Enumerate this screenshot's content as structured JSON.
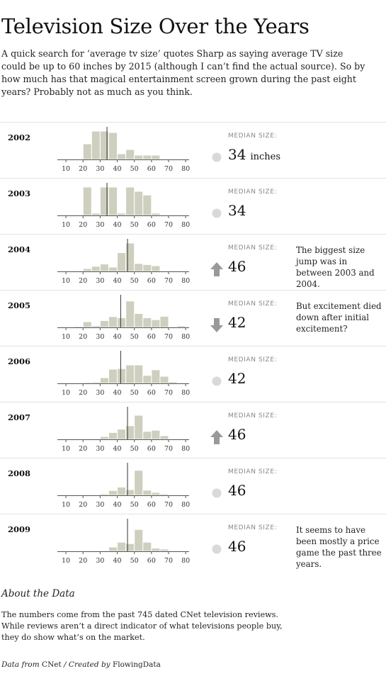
{
  "title": "Television Size Over the Years",
  "intro": "A quick search for ‘average tv size’ quotes Sharp as saying average TV size could be up to 60 inches by 2015 (although I can’t find the actual source). So by how much has that magical entertainment screen grown during the past eight years? Probably not as much as you think.",
  "median_label": "MEDIAN SIZE:",
  "unit": "inches",
  "colors": {
    "bar": "#cfcfbf",
    "bar_stroke": "#ffffff",
    "median_line": "#333333",
    "axis": "#555555",
    "indicator": "#999999",
    "neutral": "#d9d9d9"
  },
  "chart_data": {
    "type": "bar",
    "x_ticks": [
      10,
      20,
      30,
      40,
      50,
      60,
      70,
      80
    ],
    "xlim": [
      5,
      82
    ],
    "bin_width": 5,
    "bins": [
      10,
      15,
      20,
      25,
      30,
      35,
      40,
      45,
      50,
      55,
      60,
      65,
      70,
      75,
      80
    ],
    "series": [
      {
        "year": "2002",
        "median": 34,
        "trend": "same",
        "values": [
          0,
          0,
          0.55,
          1.0,
          1.0,
          0.95,
          0.2,
          0.35,
          0.15,
          0.15,
          0.15,
          0,
          0,
          0,
          0
        ],
        "note": ""
      },
      {
        "year": "2003",
        "median": 34,
        "trend": "same",
        "values": [
          0,
          0,
          1.0,
          0.08,
          1.0,
          1.0,
          0.08,
          1.0,
          0.85,
          0.72,
          0.08,
          0,
          0,
          0,
          0
        ],
        "note": ""
      },
      {
        "year": "2004",
        "median": 46,
        "trend": "up",
        "values": [
          0,
          0.03,
          0.1,
          0.18,
          0.26,
          0.15,
          0.66,
          1.0,
          0.28,
          0.24,
          0.2,
          0,
          0,
          0,
          0
        ],
        "note": "The biggest size jump was in between 2003 and 2004."
      },
      {
        "year": "2005",
        "median": 42,
        "trend": "down",
        "values": [
          0,
          0.04,
          0.2,
          0.06,
          0.24,
          0.38,
          0.34,
          0.93,
          0.49,
          0.34,
          0.27,
          0.39,
          0.02,
          0.06,
          0
        ],
        "note": "But excitement died down after initial excitement?"
      },
      {
        "year": "2006",
        "median": 42,
        "trend": "same",
        "values": [
          0,
          0.01,
          0.04,
          0.05,
          0.2,
          0.5,
          0.52,
          0.65,
          0.65,
          0.28,
          0.48,
          0.25,
          0.06,
          0,
          0
        ],
        "note": ""
      },
      {
        "year": "2007",
        "median": 46,
        "trend": "up",
        "values": [
          0,
          0,
          0.01,
          0.03,
          0.1,
          0.24,
          0.36,
          0.48,
          0.85,
          0.28,
          0.32,
          0.13,
          0.02,
          0.02,
          0
        ],
        "note": ""
      },
      {
        "year": "2008",
        "median": 46,
        "trend": "same",
        "values": [
          0,
          0,
          0.01,
          0.02,
          0.05,
          0.17,
          0.29,
          0.2,
          0.88,
          0.18,
          0.1,
          0.05,
          0.02,
          0,
          0
        ],
        "note": ""
      },
      {
        "year": "2009",
        "median": 46,
        "trend": "same",
        "values": [
          0,
          0,
          0,
          0.01,
          0.03,
          0.15,
          0.32,
          0.27,
          0.77,
          0.32,
          0.11,
          0.08,
          0.01,
          0.01,
          0
        ],
        "note": "It seems to have been mostly a price game the past three years."
      }
    ]
  },
  "about": {
    "heading": "About the Data",
    "body": "The numbers come from the past 745 dated CNet television reviews. While reviews aren’t a direct indicator of what televisions people buy, they do show what’s on the market."
  },
  "credit": {
    "data_from": "Data from",
    "source": "CNet",
    "created_by": "Created by",
    "author": "FlowingData",
    "sep": "/"
  }
}
